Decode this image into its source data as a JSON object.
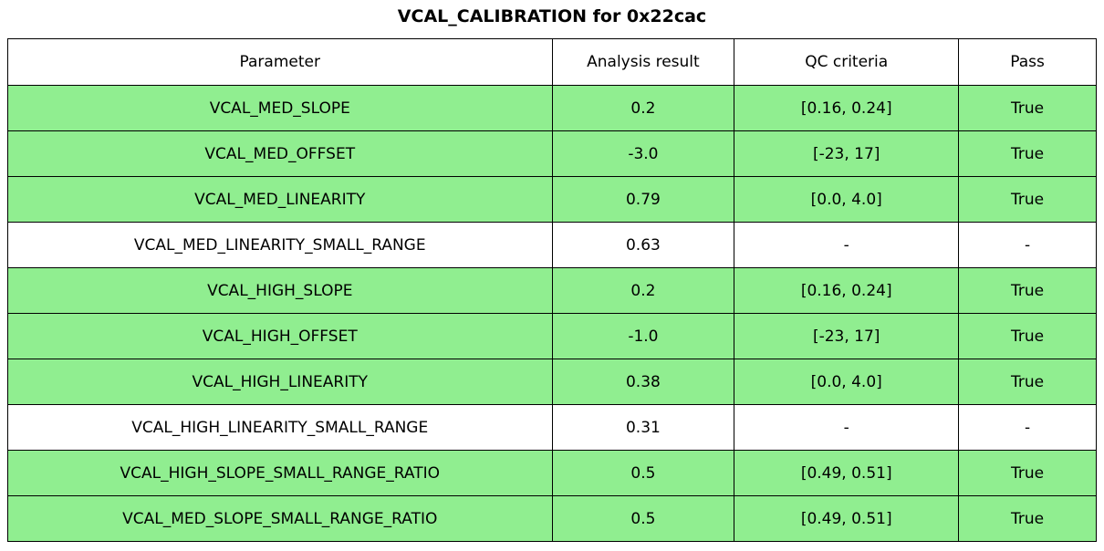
{
  "title": "VCAL_CALIBRATION for 0x22cac",
  "colors": {
    "row_pass_green": "#90EE90",
    "border": "#000000",
    "background": "#ffffff",
    "text": "#000000"
  },
  "chart_data": {
    "type": "table",
    "title": "VCAL_CALIBRATION for 0x22cac",
    "columns": [
      "Parameter",
      "Analysis result",
      "QC criteria",
      "Pass"
    ],
    "rows": [
      {
        "parameter": "VCAL_MED_SLOPE",
        "analysis_result": "0.2",
        "qc_criteria": "[0.16, 0.24]",
        "pass": "True",
        "highlighted": true
      },
      {
        "parameter": "VCAL_MED_OFFSET",
        "analysis_result": "-3.0",
        "qc_criteria": "[-23, 17]",
        "pass": "True",
        "highlighted": true
      },
      {
        "parameter": "VCAL_MED_LINEARITY",
        "analysis_result": "0.79",
        "qc_criteria": "[0.0, 4.0]",
        "pass": "True",
        "highlighted": true
      },
      {
        "parameter": "VCAL_MED_LINEARITY_SMALL_RANGE",
        "analysis_result": "0.63",
        "qc_criteria": "-",
        "pass": "-",
        "highlighted": false
      },
      {
        "parameter": "VCAL_HIGH_SLOPE",
        "analysis_result": "0.2",
        "qc_criteria": "[0.16, 0.24]",
        "pass": "True",
        "highlighted": true
      },
      {
        "parameter": "VCAL_HIGH_OFFSET",
        "analysis_result": "-1.0",
        "qc_criteria": "[-23, 17]",
        "pass": "True",
        "highlighted": true
      },
      {
        "parameter": "VCAL_HIGH_LINEARITY",
        "analysis_result": "0.38",
        "qc_criteria": "[0.0, 4.0]",
        "pass": "True",
        "highlighted": true
      },
      {
        "parameter": "VCAL_HIGH_LINEARITY_SMALL_RANGE",
        "analysis_result": "0.31",
        "qc_criteria": "-",
        "pass": "-",
        "highlighted": false
      },
      {
        "parameter": "VCAL_HIGH_SLOPE_SMALL_RANGE_RATIO",
        "analysis_result": "0.5",
        "qc_criteria": "[0.49, 0.51]",
        "pass": "True",
        "highlighted": true
      },
      {
        "parameter": "VCAL_MED_SLOPE_SMALL_RANGE_RATIO",
        "analysis_result": "0.5",
        "qc_criteria": "[0.49, 0.51]",
        "pass": "True",
        "highlighted": true
      }
    ]
  }
}
